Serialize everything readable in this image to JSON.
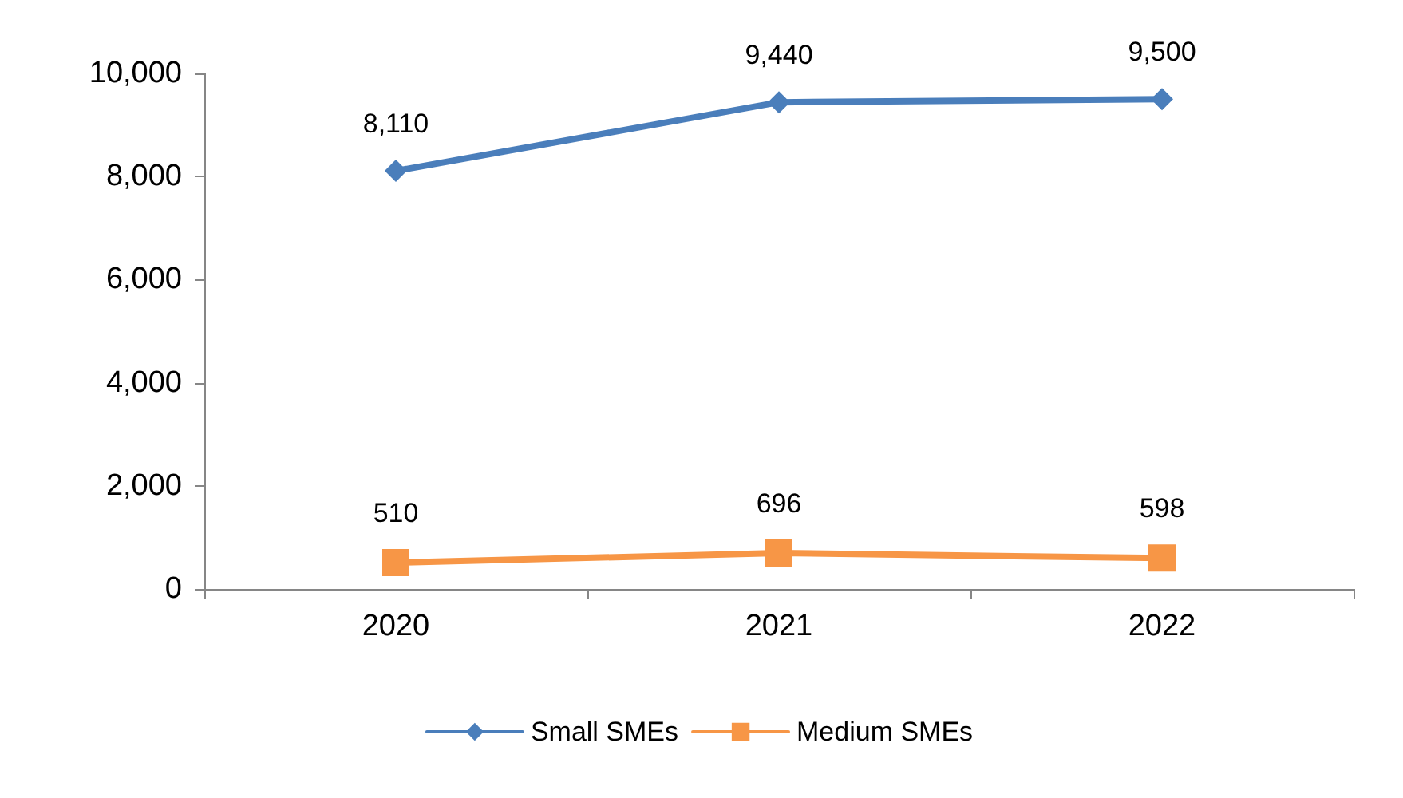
{
  "chart_data": {
    "type": "line",
    "categories": [
      "2020",
      "2021",
      "2022"
    ],
    "series": [
      {
        "name": "Small SMEs",
        "color": "#4a7ebb",
        "marker": "diamond",
        "values": [
          8110,
          9440,
          9500
        ],
        "value_labels": [
          "8,110",
          "9,440",
          "9,500"
        ]
      },
      {
        "name": "Medium SMEs",
        "color": "#f79646",
        "marker": "square",
        "values": [
          510,
          696,
          598
        ],
        "value_labels": [
          "510",
          "696",
          "598"
        ]
      }
    ],
    "ylim": [
      0,
      10000
    ],
    "yticks": [
      0,
      {
        "value": 2000,
        "label": "2,000"
      },
      {
        "value": 4000,
        "label": "4,000"
      },
      {
        "value": 6000,
        "label": "6,000"
      },
      {
        "value": 8000,
        "label": "8,000"
      },
      {
        "value": 10000,
        "label": "10,000"
      }
    ],
    "grid": false,
    "legend": "bottom",
    "line_style": "solid"
  }
}
